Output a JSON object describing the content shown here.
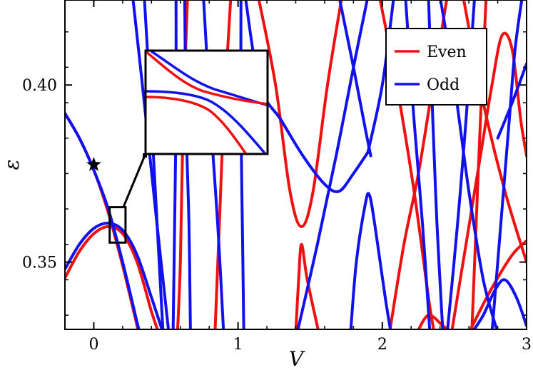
{
  "chart_data": {
    "type": "line",
    "title": "",
    "xlabel": "V",
    "ylabel": "ε",
    "xlim": [
      -0.2,
      3.0
    ],
    "ylim": [
      0.331,
      0.424
    ],
    "xticks": [
      0,
      1,
      2,
      3
    ],
    "xtick_labels": [
      "0",
      "1",
      "2",
      "3"
    ],
    "yticks": [
      0.35,
      0.4
    ],
    "ytick_labels": [
      "0.35",
      "0.40"
    ],
    "grid": false,
    "legend_position": "top-right",
    "colors": {
      "even": "#ee1111",
      "odd": "#1111ee"
    },
    "marker": {
      "type": "star",
      "x": 0.0,
      "y": 0.3775
    },
    "inset": {
      "type": "zoom",
      "box_xlim": [
        0.11,
        0.22
      ],
      "box_ylim": [
        0.3555,
        0.3655
      ]
    },
    "series": [
      {
        "name": "Even",
        "color": "#ee1111",
        "segments": [
          [
            [
              -0.2,
              0.3455
            ],
            [
              -0.1,
              0.353
            ],
            [
              0.0,
              0.358
            ],
            [
              0.1,
              0.36
            ],
            [
              0.2,
              0.358
            ],
            [
              0.3,
              0.35
            ],
            [
              0.4,
              0.336
            ],
            [
              0.45,
              0.33
            ]
          ],
          [
            [
              -0.2,
              0.392
            ],
            [
              -0.1,
              0.385
            ],
            [
              0.0,
              0.376
            ],
            [
              0.1,
              0.364
            ],
            [
              0.2,
              0.349
            ],
            [
              0.3,
              0.332
            ],
            [
              0.31,
              0.33
            ]
          ],
          [
            [
              0.65,
              0.425
            ],
            [
              0.62,
              0.39
            ],
            [
              0.6,
              0.35
            ],
            [
              0.58,
              0.33
            ]
          ],
          [
            [
              0.95,
              0.425
            ],
            [
              0.9,
              0.39
            ],
            [
              0.87,
              0.36
            ],
            [
              0.84,
              0.33
            ]
          ],
          [
            [
              1.14,
              0.425
            ],
            [
              1.26,
              0.4
            ],
            [
              1.36,
              0.37
            ],
            [
              1.44,
              0.36
            ],
            [
              1.52,
              0.37
            ],
            [
              1.62,
              0.4
            ],
            [
              1.72,
              0.425
            ]
          ],
          [
            [
              1.4,
              0.33
            ],
            [
              1.42,
              0.345
            ],
            [
              1.44,
              0.355
            ],
            [
              1.48,
              0.345
            ],
            [
              1.56,
              0.33
            ]
          ],
          [
            [
              1.98,
              0.425
            ],
            [
              2.1,
              0.4
            ],
            [
              2.22,
              0.37
            ],
            [
              2.32,
              0.34
            ],
            [
              2.36,
              0.33
            ]
          ],
          [
            [
              2.05,
              0.33
            ],
            [
              2.15,
              0.355
            ],
            [
              2.25,
              0.375
            ],
            [
              2.35,
              0.4
            ],
            [
              2.45,
              0.425
            ]
          ],
          [
            [
              2.24,
              0.33
            ],
            [
              2.32,
              0.335
            ],
            [
              2.42,
              0.332
            ],
            [
              2.48,
              0.33
            ]
          ],
          [
            [
              2.48,
              0.33
            ],
            [
              2.58,
              0.355
            ],
            [
              2.68,
              0.38
            ],
            [
              2.76,
              0.4
            ],
            [
              2.83,
              0.414
            ],
            [
              2.9,
              0.41
            ],
            [
              2.96,
              0.39
            ],
            [
              3.0,
              0.38
            ]
          ],
          [
            [
              2.6,
              0.33
            ],
            [
              2.75,
              0.342
            ],
            [
              2.9,
              0.352
            ],
            [
              3.0,
              0.356
            ]
          ],
          [
            [
              2.56,
              0.425
            ],
            [
              2.7,
              0.395
            ],
            [
              2.85,
              0.37
            ],
            [
              3.0,
              0.35
            ]
          ],
          [
            [
              2.72,
              0.425
            ],
            [
              2.68,
              0.39
            ],
            [
              2.64,
              0.35
            ],
            [
              2.62,
              0.33
            ]
          ]
        ]
      },
      {
        "name": "Odd",
        "color": "#1111ee",
        "segments": [
          [
            [
              -0.2,
              0.392
            ],
            [
              -0.1,
              0.385
            ],
            [
              0.0,
              0.376
            ],
            [
              0.1,
              0.365
            ],
            [
              0.2,
              0.35
            ],
            [
              0.3,
              0.333
            ],
            [
              0.32,
              0.33
            ]
          ],
          [
            [
              -0.2,
              0.348
            ],
            [
              -0.1,
              0.355
            ],
            [
              0.0,
              0.3595
            ],
            [
              0.1,
              0.361
            ],
            [
              0.2,
              0.359
            ],
            [
              0.3,
              0.352
            ],
            [
              0.4,
              0.34
            ],
            [
              0.48,
              0.33
            ]
          ],
          [
            [
              0.27,
              0.425
            ],
            [
              0.35,
              0.395
            ],
            [
              0.44,
              0.36
            ],
            [
              0.52,
              0.33
            ]
          ],
          [
            [
              0.35,
              0.425
            ],
            [
              0.4,
              0.39
            ],
            [
              0.44,
              0.36
            ],
            [
              0.48,
              0.33
            ]
          ],
          [
            [
              0.57,
              0.425
            ],
            [
              0.57,
              0.39
            ],
            [
              0.56,
              0.36
            ],
            [
              0.55,
              0.33
            ]
          ],
          [
            [
              0.63,
              0.425
            ],
            [
              0.64,
              0.39
            ],
            [
              0.66,
              0.36
            ],
            [
              0.67,
              0.33
            ]
          ],
          [
            [
              0.76,
              0.425
            ],
            [
              0.81,
              0.39
            ],
            [
              0.86,
              0.36
            ],
            [
              0.9,
              0.33
            ]
          ],
          [
            [
              1.02,
              0.425
            ],
            [
              1.02,
              0.39
            ],
            [
              1.03,
              0.36
            ],
            [
              1.04,
              0.33
            ]
          ],
          [
            [
              1.05,
              0.425
            ],
            [
              1.15,
              0.4
            ],
            [
              1.3,
              0.39
            ],
            [
              1.45,
              0.38
            ],
            [
              1.6,
              0.372
            ],
            [
              1.7,
              0.37
            ],
            [
              1.8,
              0.375
            ],
            [
              1.9,
              0.381
            ]
          ],
          [
            [
              1.9,
              0.381
            ],
            [
              2.0,
              0.4
            ],
            [
              2.08,
              0.425
            ]
          ],
          [
            [
              1.7,
              0.425
            ],
            [
              1.8,
              0.405
            ],
            [
              1.88,
              0.388
            ],
            [
              1.92,
              0.38
            ]
          ],
          [
            [
              1.41,
              0.33
            ],
            [
              1.55,
              0.355
            ],
            [
              1.68,
              0.38
            ],
            [
              1.8,
              0.405
            ],
            [
              1.9,
              0.425
            ]
          ],
          [
            [
              1.78,
              0.33
            ],
            [
              1.82,
              0.35
            ],
            [
              1.88,
              0.366
            ],
            [
              1.91,
              0.369
            ],
            [
              1.95,
              0.36
            ],
            [
              2.02,
              0.34
            ],
            [
              2.06,
              0.33
            ]
          ],
          [
            [
              2.16,
              0.425
            ],
            [
              2.22,
              0.39
            ],
            [
              2.28,
              0.36
            ],
            [
              2.33,
              0.33
            ]
          ],
          [
            [
              2.32,
              0.425
            ],
            [
              2.35,
              0.39
            ],
            [
              2.38,
              0.36
            ],
            [
              2.42,
              0.33
            ]
          ],
          [
            [
              2.4,
              0.425
            ],
            [
              2.5,
              0.4
            ],
            [
              2.6,
              0.37
            ],
            [
              2.7,
              0.345
            ],
            [
              2.8,
              0.33
            ]
          ],
          [
            [
              2.45,
              0.33
            ],
            [
              2.52,
              0.36
            ],
            [
              2.58,
              0.39
            ],
            [
              2.64,
              0.425
            ]
          ],
          [
            [
              2.62,
              0.33
            ],
            [
              2.7,
              0.335
            ],
            [
              2.78,
              0.342
            ],
            [
              2.85,
              0.345
            ],
            [
              2.93,
              0.34
            ],
            [
              3.0,
              0.332
            ]
          ],
          [
            [
              2.76,
              0.33
            ],
            [
              2.82,
              0.36
            ],
            [
              2.88,
              0.39
            ],
            [
              2.92,
              0.41
            ],
            [
              2.97,
              0.425
            ]
          ],
          [
            [
              2.8,
              0.385
            ],
            [
              2.9,
              0.395
            ],
            [
              3.0,
              0.406
            ]
          ]
        ]
      }
    ]
  }
}
